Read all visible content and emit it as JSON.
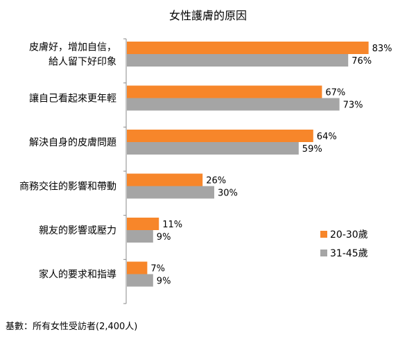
{
  "chart_data": {
    "type": "bar",
    "orientation": "horizontal",
    "title": "女性護膚的原因",
    "categories": [
      [
        "皮膚好，增加自信，",
        "給人留下好印象"
      ],
      [
        "讓自己看起來更年輕"
      ],
      [
        "解決自身的皮膚問題"
      ],
      [
        "商務交往的影響和帶動"
      ],
      [
        "親友的影響或壓力"
      ],
      [
        "家人的要求和指導"
      ]
    ],
    "series": [
      {
        "name": "20-30歲",
        "color": "#f7862a",
        "values": [
          83,
          67,
          64,
          26,
          11,
          7
        ],
        "labels": [
          "83%",
          "67%",
          "64%",
          "26%",
          "11%",
          "7%"
        ]
      },
      {
        "name": "31-45歲",
        "color": "#a5a5a5",
        "values": [
          76,
          73,
          59,
          30,
          9,
          9
        ],
        "labels": [
          "76%",
          "73%",
          "59%",
          "30%",
          "9%",
          "9%"
        ]
      }
    ],
    "xlim": [
      0,
      100
    ],
    "xlabel": "",
    "ylabel": "",
    "grid": false,
    "legend_position": "right",
    "value_unit": "%"
  },
  "footnote": "基數：所有女性受訪者(2,400人)"
}
